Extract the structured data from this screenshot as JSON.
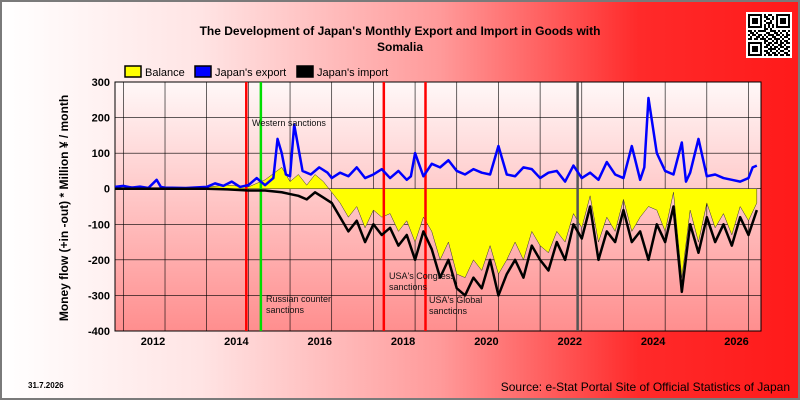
{
  "chart_data": {
    "type": "line",
    "title_line1": "The Development of Japan's Monthly Export and Import in Goods with",
    "title_line2": "Somalia",
    "ylabel": "Money flow (+in -out) * Million ¥ / month",
    "xlabel": "",
    "ylim": [
      -400,
      300
    ],
    "xlim": [
      2010.8,
      2026.3
    ],
    "y_ticks": [
      -400,
      -300,
      -200,
      -100,
      0,
      100,
      200,
      300
    ],
    "x_ticks": [
      2012,
      2014,
      2016,
      2018,
      2020,
      2022,
      2024,
      2026
    ],
    "grid": true,
    "legend_position": "top-left",
    "series": [
      {
        "name": "Japan's export",
        "color": "#0000ff",
        "x": [
          2010.8,
          2011.0,
          2011.2,
          2011.4,
          2011.6,
          2011.8,
          2011.9,
          2012.0,
          2012.5,
          2013.0,
          2013.2,
          2013.4,
          2013.6,
          2013.8,
          2014.0,
          2014.2,
          2014.4,
          2014.6,
          2014.7,
          2014.8,
          2014.9,
          2015.0,
          2015.1,
          2015.3,
          2015.5,
          2015.7,
          2015.9,
          2016.0,
          2016.2,
          2016.4,
          2016.6,
          2016.8,
          2017.0,
          2017.2,
          2017.4,
          2017.6,
          2017.8,
          2017.9,
          2018.0,
          2018.2,
          2018.4,
          2018.6,
          2018.8,
          2019.0,
          2019.2,
          2019.4,
          2019.6,
          2019.8,
          2020.0,
          2020.2,
          2020.4,
          2020.6,
          2020.8,
          2021.0,
          2021.2,
          2021.4,
          2021.6,
          2021.8,
          2022.0,
          2022.2,
          2022.4,
          2022.6,
          2022.8,
          2023.0,
          2023.2,
          2023.4,
          2023.5,
          2023.6,
          2023.8,
          2024.0,
          2024.2,
          2024.4,
          2024.5,
          2024.6,
          2024.8,
          2025.0,
          2025.2,
          2025.4,
          2025.6,
          2025.8,
          2026.0,
          2026.1,
          2026.2
        ],
        "values": [
          5,
          8,
          3,
          6,
          2,
          25,
          5,
          3,
          2,
          5,
          15,
          8,
          20,
          5,
          10,
          30,
          10,
          30,
          140,
          100,
          40,
          35,
          180,
          50,
          40,
          60,
          45,
          30,
          45,
          35,
          60,
          30,
          40,
          55,
          30,
          50,
          25,
          35,
          100,
          35,
          70,
          60,
          80,
          50,
          40,
          55,
          45,
          40,
          120,
          40,
          35,
          60,
          55,
          30,
          45,
          50,
          20,
          65,
          30,
          45,
          25,
          75,
          40,
          30,
          120,
          25,
          60,
          255,
          100,
          50,
          40,
          130,
          20,
          45,
          140,
          35,
          40,
          30,
          25,
          20,
          30,
          60,
          65
        ]
      },
      {
        "name": "Japan's import",
        "color": "#000000",
        "x": [
          2010.8,
          2011.0,
          2011.5,
          2012.0,
          2012.5,
          2013.0,
          2013.5,
          2014.0,
          2014.4,
          2014.8,
          2015.0,
          2015.2,
          2015.4,
          2015.6,
          2015.8,
          2016.0,
          2016.2,
          2016.4,
          2016.6,
          2016.8,
          2017.0,
          2017.2,
          2017.4,
          2017.6,
          2017.8,
          2018.0,
          2018.2,
          2018.4,
          2018.6,
          2018.8,
          2019.0,
          2019.2,
          2019.4,
          2019.6,
          2019.8,
          2020.0,
          2020.2,
          2020.4,
          2020.6,
          2020.8,
          2021.0,
          2021.2,
          2021.4,
          2021.6,
          2021.8,
          2022.0,
          2022.2,
          2022.4,
          2022.6,
          2022.8,
          2023.0,
          2023.2,
          2023.4,
          2023.6,
          2023.8,
          2024.0,
          2024.2,
          2024.4,
          2024.6,
          2024.8,
          2025.0,
          2025.2,
          2025.4,
          2025.6,
          2025.8,
          2026.0,
          2026.2
        ],
        "values": [
          0,
          0,
          0,
          0,
          0,
          0,
          -2,
          -5,
          -5,
          -10,
          -15,
          -20,
          -30,
          -10,
          -25,
          -40,
          -80,
          -120,
          -90,
          -150,
          -100,
          -130,
          -110,
          -160,
          -130,
          -200,
          -120,
          -170,
          -250,
          -200,
          -280,
          -300,
          -250,
          -280,
          -200,
          -300,
          -240,
          -200,
          -250,
          -160,
          -200,
          -230,
          -150,
          -200,
          -100,
          -140,
          -50,
          -200,
          -120,
          -150,
          -60,
          -150,
          -120,
          -200,
          -100,
          -150,
          -50,
          -290,
          -100,
          -180,
          -80,
          -150,
          -100,
          -160,
          -80,
          -130,
          -60
        ]
      },
      {
        "name": "Balance",
        "color": "#ffff00",
        "x": [
          2010.8,
          2011.0,
          2011.5,
          2012.0,
          2012.5,
          2013.0,
          2013.5,
          2014.0,
          2014.4,
          2014.8,
          2015.0,
          2015.2,
          2015.4,
          2015.6,
          2015.8,
          2016.0,
          2016.2,
          2016.4,
          2016.6,
          2016.8,
          2017.0,
          2017.2,
          2017.4,
          2017.6,
          2017.8,
          2018.0,
          2018.2,
          2018.4,
          2018.6,
          2018.8,
          2019.0,
          2019.2,
          2019.4,
          2019.6,
          2019.8,
          2020.0,
          2020.2,
          2020.4,
          2020.6,
          2020.8,
          2021.0,
          2021.2,
          2021.4,
          2021.6,
          2021.8,
          2022.0,
          2022.2,
          2022.4,
          2022.6,
          2022.8,
          2023.0,
          2023.2,
          2023.4,
          2023.6,
          2023.8,
          2024.0,
          2024.2,
          2024.4,
          2024.6,
          2024.8,
          2025.0,
          2025.2,
          2025.4,
          2025.6,
          2025.8,
          2026.0,
          2026.2
        ],
        "values": [
          5,
          8,
          3,
          3,
          2,
          5,
          10,
          5,
          25,
          60,
          20,
          40,
          10,
          40,
          20,
          -10,
          -40,
          -80,
          -50,
          -110,
          -60,
          -80,
          -70,
          -120,
          -90,
          -150,
          -80,
          -120,
          -200,
          -150,
          -240,
          -250,
          -200,
          -230,
          -160,
          -240,
          -200,
          -150,
          -200,
          -120,
          -160,
          -180,
          -120,
          -150,
          -70,
          -110,
          -20,
          -150,
          -80,
          -120,
          -30,
          -120,
          -80,
          -50,
          -60,
          -120,
          -10,
          -250,
          -60,
          -150,
          -40,
          -110,
          -70,
          -130,
          -50,
          -90,
          -40
        ]
      }
    ],
    "sanctions": [
      {
        "x": 2013.95,
        "color": "#ff0000",
        "label": ""
      },
      {
        "x": 2014.3,
        "color": "#00dd00",
        "label": "Russian counter sanctions"
      },
      {
        "x": 2017.25,
        "color": "#ff0000",
        "label": "USA's Congress sanctions"
      },
      {
        "x": 2018.25,
        "color": "#ff0000",
        "label": "USA's Global sanctions"
      },
      {
        "x": 2021.9,
        "color": "#555555",
        "label": ""
      }
    ],
    "annotations": {
      "western": "Western sanctions"
    },
    "legend": [
      {
        "label": "Balance",
        "color": "#ffff00"
      },
      {
        "label": "Japan's export",
        "color": "#0000ff"
      },
      {
        "label": "Japan's import",
        "color": "#000000"
      }
    ]
  },
  "footer": {
    "source": "Source: e-Stat Portal Site of Official Statistics of Japan",
    "date": "31.7.2026"
  },
  "qr": {
    "icon": "qr-code-icon"
  }
}
